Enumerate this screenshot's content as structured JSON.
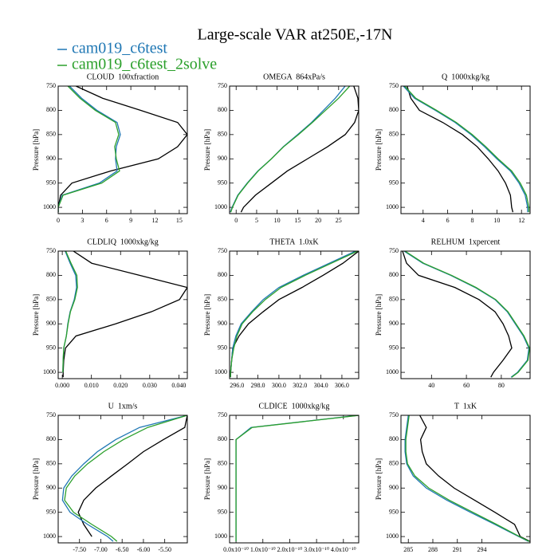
{
  "title": "Large-scale VAR at250E,-17N",
  "legend": [
    {
      "name": "cam019_c6test",
      "color": "#1f77b4"
    },
    {
      "name": "cam019_c6test_2solve",
      "color": "#2ca02c"
    }
  ],
  "chart_data": [
    {
      "type": "line",
      "title": "CLOUD  100xfraction",
      "ylabel": "Pressure [hPa]",
      "y": [
        750,
        775,
        800,
        825,
        850,
        875,
        900,
        925,
        950,
        975,
        1000,
        1010
      ],
      "ylim": [
        750,
        1013
      ],
      "yticks": [
        750,
        800,
        850,
        900,
        950,
        1000
      ],
      "invert_y": true,
      "xlim": [
        0,
        16
      ],
      "xticks": [
        0,
        3,
        6,
        9,
        12,
        15
      ],
      "series": [
        {
          "color": "#000000",
          "values": [
            2.2,
            5.5,
            10.2,
            14.8,
            16,
            14.8,
            12.4,
            6.5,
            1.7,
            0.3,
            0,
            0
          ]
        },
        {
          "color": "#1f77b4",
          "values": [
            1.4,
            2.9,
            4.8,
            7.3,
            7.7,
            7.2,
            7.1,
            7.3,
            5.1,
            0.5,
            0,
            0
          ]
        },
        {
          "color": "#2ca02c",
          "values": [
            1.2,
            2.7,
            4.6,
            7.1,
            7.5,
            7.0,
            7.2,
            7.6,
            5.4,
            0.6,
            0,
            0
          ]
        }
      ]
    },
    {
      "type": "line",
      "title": "OMEGA  864xPa/s",
      "ylabel": "Pressure [hPa]",
      "y": [
        750,
        775,
        800,
        825,
        850,
        875,
        900,
        925,
        950,
        975,
        1000,
        1010
      ],
      "ylim": [
        750,
        1013
      ],
      "yticks": [
        750,
        800,
        850,
        900,
        950,
        1000
      ],
      "invert_y": true,
      "xlim": [
        -1.6,
        29.9
      ],
      "xticks": [
        0,
        5,
        10,
        15,
        20,
        25
      ],
      "series": [
        {
          "color": "#000000",
          "values": [
            28.7,
            29.7,
            29.9,
            28.9,
            26.6,
            22.3,
            17.4,
            12.5,
            8.6,
            4.7,
            1.8,
            1.2
          ]
        },
        {
          "color": "#1f77b4",
          "values": [
            26.6,
            24.2,
            21.3,
            18.4,
            15,
            11.5,
            8.6,
            5.3,
            2.7,
            0.4,
            -1,
            -1.4
          ]
        },
        {
          "color": "#2ca02c",
          "values": [
            27.7,
            25,
            21.8,
            18.6,
            15.2,
            11.6,
            8.6,
            5.4,
            2.8,
            0.5,
            -0.9,
            -1.3
          ]
        }
      ]
    },
    {
      "type": "line",
      "title": "Q  1000xkg/kg",
      "ylabel": "Pressure [hPa]",
      "y": [
        750,
        775,
        800,
        825,
        850,
        875,
        900,
        925,
        950,
        975,
        1000,
        1010
      ],
      "ylim": [
        750,
        1013
      ],
      "yticks": [
        750,
        800,
        850,
        900,
        950,
        1000
      ],
      "invert_y": true,
      "xlim": [
        2.2,
        12.7
      ],
      "xticks": [
        4,
        6,
        8,
        10,
        12
      ],
      "series": [
        {
          "color": "#000000",
          "values": [
            2.7,
            3,
            3.7,
            5.6,
            7.2,
            8.4,
            9.3,
            10.1,
            10.7,
            11.1,
            11.2,
            11.3
          ]
        },
        {
          "color": "#1f77b4",
          "values": [
            2.4,
            3.3,
            5,
            6.6,
            7.9,
            9,
            10,
            11.1,
            11.8,
            12.3,
            12.5,
            12.5
          ]
        },
        {
          "color": "#2ca02c",
          "values": [
            2.5,
            3.4,
            5.1,
            6.7,
            8,
            9.1,
            10.1,
            11.2,
            11.9,
            12.4,
            12.6,
            12.6
          ]
        }
      ]
    },
    {
      "type": "line",
      "title": "CLDLIQ  1000xkg/kg",
      "ylabel": "Pressure [hPa]",
      "y": [
        750,
        775,
        800,
        825,
        850,
        875,
        900,
        925,
        950,
        975,
        1000,
        1010
      ],
      "ylim": [
        750,
        1013
      ],
      "yticks": [
        750,
        800,
        850,
        900,
        950,
        1000
      ],
      "invert_y": true,
      "xlim": [
        -0.0014,
        0.0429
      ],
      "xticks": [
        {
          "value": 0,
          "label": "0.000"
        },
        {
          "value": 0.01,
          "label": "0.010"
        },
        {
          "value": 0.02,
          "label": "0.020"
        },
        {
          "value": 0.03,
          "label": "0.030"
        },
        {
          "value": 0.04,
          "label": "0.040"
        }
      ],
      "series": [
        {
          "color": "#000000",
          "values": [
            0.0038,
            0.0101,
            0.0265,
            0.0429,
            0.0402,
            0.0306,
            0.0183,
            0.0047,
            0.0011,
            0.0005,
            0.0003,
            0.0003
          ]
        },
        {
          "color": "#1f77b4",
          "values": [
            0.001,
            0.0027,
            0.0046,
            0.0049,
            0.0041,
            0.0027,
            0.0019,
            0.0014,
            0.0005,
            0.0003,
            0.0002,
            null
          ]
        },
        {
          "color": "#2ca02c",
          "values": [
            0.0012,
            0.003,
            0.005,
            0.0052,
            0.0043,
            0.0028,
            0.002,
            0.0014,
            0.0005,
            0.0003,
            0.0002,
            null
          ]
        }
      ]
    },
    {
      "type": "line",
      "title": "THETA  1.0xK",
      "ylabel": "Pressure [hPa]",
      "y": [
        750,
        775,
        800,
        825,
        850,
        875,
        900,
        925,
        950,
        975,
        1000,
        1010
      ],
      "ylim": [
        750,
        1013
      ],
      "yticks": [
        750,
        800,
        850,
        900,
        950,
        1000
      ],
      "invert_y": true,
      "xlim": [
        295.3,
        307.6
      ],
      "xticks": [
        {
          "value": 296,
          "label": "296.0"
        },
        {
          "value": 298,
          "label": "298.0"
        },
        {
          "value": 300,
          "label": "300.0"
        },
        {
          "value": 302,
          "label": "302.0"
        },
        {
          "value": 304,
          "label": "304.0"
        },
        {
          "value": 306,
          "label": "306.0"
        }
      ],
      "series": [
        {
          "color": "#000000",
          "values": [
            307.6,
            306.1,
            304.2,
            302.2,
            300,
            298.5,
            297.1,
            296.2,
            295.6,
            295.5,
            295.4,
            295.4
          ]
        },
        {
          "color": "#1f77b4",
          "values": [
            307.3,
            304.8,
            302.3,
            300,
            298.5,
            297.4,
            296.4,
            295.9,
            295.6,
            295.5,
            295.4,
            295.4
          ]
        },
        {
          "color": "#2ca02c",
          "values": [
            307.5,
            305,
            302.5,
            300.2,
            298.7,
            297.5,
            296.5,
            296,
            295.7,
            295.5,
            295.4,
            295.4
          ]
        }
      ]
    },
    {
      "type": "line",
      "title": "RELHUM  1xpercent",
      "ylabel": "Pressure [hPa]",
      "y": [
        750,
        775,
        800,
        825,
        850,
        875,
        900,
        925,
        950,
        975,
        1000,
        1010
      ],
      "ylim": [
        750,
        1013
      ],
      "yticks": [
        750,
        800,
        850,
        900,
        950,
        1000
      ],
      "invert_y": true,
      "xlim": [
        22.5,
        96.5
      ],
      "xticks": [
        40,
        60,
        80
      ],
      "series": [
        {
          "color": "#000000",
          "values": [
            23.4,
            25.7,
            32.6,
            53.4,
            67.2,
            76.4,
            81,
            84.2,
            86,
            81,
            75.5,
            74
          ]
        },
        {
          "color": "#1f77b4",
          "values": [
            24.3,
            35,
            51,
            65,
            76.4,
            83.4,
            88,
            92.6,
            95.8,
            94.9,
            89.3,
            85.6
          ]
        },
        {
          "color": "#2ca02c",
          "values": [
            24.8,
            35.5,
            51.5,
            65.5,
            76.8,
            83.8,
            88.4,
            93,
            96.2,
            95.3,
            89.7,
            86
          ]
        }
      ]
    },
    {
      "type": "line",
      "title": "U  1xm/s",
      "ylabel": "Pressure [hPa]",
      "y": [
        750,
        775,
        800,
        825,
        850,
        875,
        900,
        925,
        950,
        975,
        1000,
        1010
      ],
      "ylim": [
        750,
        1013
      ],
      "yticks": [
        750,
        800,
        850,
        900,
        950,
        1000
      ],
      "invert_y": true,
      "xlim": [
        -8,
        -4.97
      ],
      "xticks": [
        {
          "value": -7.5,
          "label": "-7.50"
        },
        {
          "value": -7,
          "label": "-7.00"
        },
        {
          "value": -6.5,
          "label": "-6.50"
        },
        {
          "value": -6,
          "label": "-6.00"
        },
        {
          "value": -5.5,
          "label": "-5.50"
        }
      ],
      "series": [
        {
          "color": "#000000",
          "values": [
            -4.97,
            -5.03,
            -5.53,
            -6.0,
            -6.37,
            -6.75,
            -7.12,
            -7.4,
            -7.53,
            -7.4,
            -7.21,
            null
          ]
        },
        {
          "color": "#1f77b4",
          "values": [
            -4.97,
            -6.09,
            -6.65,
            -7.08,
            -7.4,
            -7.68,
            -7.87,
            -7.9,
            -7.72,
            -7.31,
            -6.84,
            -6.71
          ]
        },
        {
          "color": "#2ca02c",
          "values": [
            -4.97,
            -5.9,
            -6.47,
            -6.93,
            -7.31,
            -7.61,
            -7.81,
            -7.85,
            -7.64,
            -7.21,
            -6.75,
            -6.62
          ]
        }
      ]
    },
    {
      "type": "line",
      "title": "CLDICE  1000xkg/kg",
      "ylabel": "Pressure [hPa]",
      "y": [
        750,
        775,
        800,
        825,
        850,
        875,
        900,
        925,
        950,
        975,
        1000,
        1010
      ],
      "ylim": [
        750,
        1013
      ],
      "yticks": [
        750,
        800,
        850,
        900,
        950,
        1000
      ],
      "invert_y": true,
      "xlim": [
        -2.4e-11,
        4.57e-10
      ],
      "xticks": [
        {
          "value": 0,
          "label": "0.0x10⁻¹⁰"
        },
        {
          "value": 1e-10,
          "label": "1.0x10⁻¹⁰"
        },
        {
          "value": 2e-10,
          "label": "2.0x10⁻¹⁰"
        },
        {
          "value": 3e-10,
          "label": "3.0x10⁻¹⁰"
        },
        {
          "value": 4e-10,
          "label": "4.0x10⁻¹⁰"
        }
      ],
      "series": [
        {
          "color": "#1f77b4",
          "values": [
            4.55e-10,
            5.6e-11,
            0,
            0,
            0,
            0,
            0,
            0,
            0,
            0,
            0,
            0
          ]
        },
        {
          "color": "#2ca02c",
          "values": [
            4.6e-10,
            6e-11,
            0,
            0,
            0,
            0,
            0,
            0,
            0,
            0,
            0,
            0
          ]
        }
      ]
    },
    {
      "type": "line",
      "title": "T  1xK",
      "ylabel": "Pressure [hPa]",
      "y": [
        750,
        775,
        800,
        825,
        850,
        875,
        900,
        925,
        950,
        975,
        1000,
        1010
      ],
      "ylim": [
        750,
        1013
      ],
      "yticks": [
        750,
        800,
        850,
        900,
        950,
        1000
      ],
      "invert_y": true,
      "xlim": [
        284.1,
        299.9
      ],
      "xticks": [
        285,
        288,
        291,
        294
      ],
      "series": [
        {
          "color": "#000000",
          "values": [
            286.4,
            287.2,
            286.5,
            286.7,
            287.2,
            288.7,
            290.6,
            293.1,
            295.6,
            298,
            298.7,
            299.9
          ]
        },
        {
          "color": "#1f77b4",
          "values": [
            285,
            284.8,
            284.6,
            284.6,
            284.8,
            285.6,
            287.2,
            289.7,
            292.6,
            295.6,
            298.5,
            299.7
          ]
        },
        {
          "color": "#2ca02c",
          "values": [
            285.1,
            284.9,
            284.7,
            284.7,
            284.9,
            285.8,
            287.5,
            290,
            292.9,
            295.8,
            298.6,
            299.8
          ]
        }
      ]
    }
  ]
}
